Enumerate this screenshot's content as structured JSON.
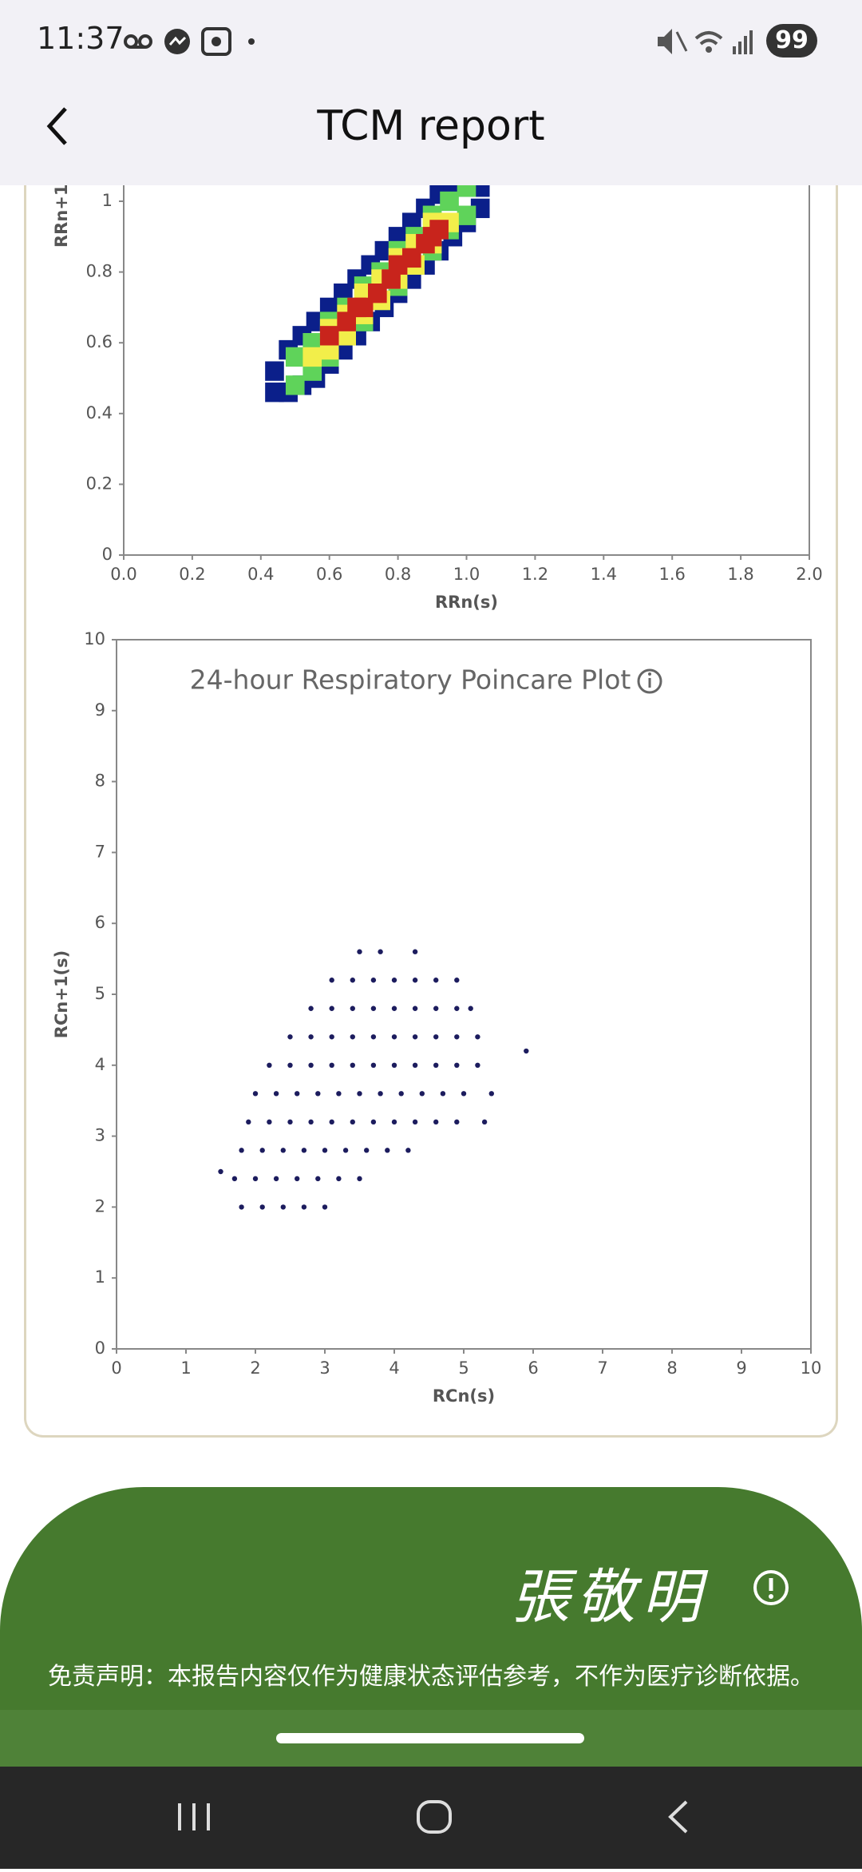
{
  "status_bar": {
    "time": "11:37",
    "battery": "99"
  },
  "header": {
    "title": "TCM report"
  },
  "chart_data": [
    {
      "type": "scatter",
      "marker": "square",
      "x_label": "RRn(s)",
      "y_label": "RRn+1",
      "xlim": [
        0,
        2
      ],
      "ylim": [
        0,
        2
      ],
      "xticks": [
        {
          "value": 0,
          "label": "0.0"
        },
        0.2,
        0.4,
        0.6,
        0.8,
        {
          "value": 1,
          "label": "1.0"
        },
        1.2,
        1.4,
        1.6,
        1.8,
        {
          "value": 2,
          "label": "2.0"
        }
      ],
      "yticks": [
        0,
        0.2,
        0.4,
        0.6,
        0.8,
        1
      ],
      "series": [
        {
          "color": "#0b1f8a",
          "x": [
            0.44,
            0.44,
            0.48,
            0.48,
            0.52,
            0.52,
            0.56,
            0.56,
            0.6,
            0.6,
            0.64,
            0.64,
            0.68,
            0.68,
            0.72,
            0.72,
            0.76,
            0.76,
            0.8,
            0.8,
            0.84,
            0.84,
            0.88,
            0.88,
            0.92,
            0.92,
            0.96,
            0.96,
            1.0,
            1.0,
            1.04,
            1.04
          ],
          "y": [
            0.46,
            0.52,
            0.46,
            0.58,
            0.48,
            0.62,
            0.5,
            0.66,
            0.54,
            0.7,
            0.58,
            0.74,
            0.62,
            0.78,
            0.66,
            0.82,
            0.7,
            0.86,
            0.74,
            0.9,
            0.78,
            0.94,
            0.82,
            0.98,
            0.86,
            1.02,
            0.9,
            1.04,
            0.94,
            1.04,
            0.98,
            1.04
          ]
        },
        {
          "color": "#5fd35a",
          "x": [
            0.5,
            0.5,
            0.55,
            0.55,
            0.6,
            0.6,
            0.65,
            0.65,
            0.7,
            0.7,
            0.75,
            0.75,
            0.8,
            0.8,
            0.85,
            0.85,
            0.9,
            0.9,
            0.95,
            0.95,
            1.0,
            1.0
          ],
          "y": [
            0.48,
            0.56,
            0.52,
            0.6,
            0.56,
            0.66,
            0.62,
            0.7,
            0.66,
            0.76,
            0.72,
            0.8,
            0.76,
            0.86,
            0.82,
            0.9,
            0.86,
            0.96,
            0.92,
            1.0,
            0.96,
            1.04
          ]
        },
        {
          "color": "#f2ee4a",
          "x": [
            0.55,
            0.6,
            0.6,
            0.65,
            0.65,
            0.7,
            0.7,
            0.75,
            0.75,
            0.8,
            0.8,
            0.85,
            0.85,
            0.9,
            0.9,
            0.95
          ],
          "y": [
            0.56,
            0.58,
            0.64,
            0.62,
            0.68,
            0.68,
            0.74,
            0.72,
            0.78,
            0.78,
            0.84,
            0.82,
            0.88,
            0.88,
            0.94,
            0.94
          ]
        },
        {
          "color": "#c8241c",
          "x": [
            0.6,
            0.65,
            0.68,
            0.7,
            0.74,
            0.78,
            0.8,
            0.84,
            0.88,
            0.9,
            0.92
          ],
          "y": [
            0.62,
            0.66,
            0.7,
            0.7,
            0.74,
            0.78,
            0.82,
            0.84,
            0.88,
            0.9,
            0.92
          ]
        }
      ]
    },
    {
      "type": "scatter",
      "marker": "dot",
      "title": "24-hour Respiratory Poincare Plot",
      "x_label": "RCn(s)",
      "y_label": "RCn+1(s)",
      "xlim": [
        0,
        10
      ],
      "ylim": [
        0,
        10
      ],
      "xticks": [
        0,
        1,
        2,
        3,
        4,
        5,
        6,
        7,
        8,
        9,
        10
      ],
      "yticks": [
        0,
        1,
        2,
        3,
        4,
        5,
        6,
        7,
        8,
        9,
        10
      ],
      "series": [
        {
          "color": "#1c1c5e",
          "x": [
            1.8,
            2.1,
            2.4,
            2.7,
            3.0,
            1.7,
            2.0,
            2.3,
            2.6,
            2.9,
            3.2,
            3.5,
            1.8,
            2.1,
            2.4,
            2.7,
            3.0,
            3.3,
            3.6,
            3.9,
            4.2,
            1.9,
            2.2,
            2.5,
            2.8,
            3.1,
            3.4,
            3.7,
            4.0,
            4.3,
            4.6,
            4.9,
            5.3,
            2.0,
            2.3,
            2.6,
            2.9,
            3.2,
            3.5,
            3.8,
            4.1,
            4.4,
            4.7,
            5.0,
            5.4,
            2.2,
            2.5,
            2.8,
            3.1,
            3.4,
            3.7,
            4.0,
            4.3,
            4.6,
            4.9,
            5.2,
            2.5,
            2.8,
            3.1,
            3.4,
            3.7,
            4.0,
            4.3,
            4.6,
            4.9,
            5.2,
            2.8,
            3.1,
            3.4,
            3.7,
            4.0,
            4.3,
            4.6,
            4.9,
            5.1,
            3.1,
            3.4,
            3.7,
            4.0,
            4.3,
            4.6,
            4.9,
            3.5,
            3.8,
            4.3,
            5.9,
            1.5
          ],
          "y": [
            2.0,
            2.0,
            2.0,
            2.0,
            2.0,
            2.4,
            2.4,
            2.4,
            2.4,
            2.4,
            2.4,
            2.4,
            2.8,
            2.8,
            2.8,
            2.8,
            2.8,
            2.8,
            2.8,
            2.8,
            2.8,
            3.2,
            3.2,
            3.2,
            3.2,
            3.2,
            3.2,
            3.2,
            3.2,
            3.2,
            3.2,
            3.2,
            3.2,
            3.6,
            3.6,
            3.6,
            3.6,
            3.6,
            3.6,
            3.6,
            3.6,
            3.6,
            3.6,
            3.6,
            3.6,
            4.0,
            4.0,
            4.0,
            4.0,
            4.0,
            4.0,
            4.0,
            4.0,
            4.0,
            4.0,
            4.0,
            4.4,
            4.4,
            4.4,
            4.4,
            4.4,
            4.4,
            4.4,
            4.4,
            4.4,
            4.4,
            4.8,
            4.8,
            4.8,
            4.8,
            4.8,
            4.8,
            4.8,
            4.8,
            4.8,
            5.2,
            5.2,
            5.2,
            5.2,
            5.2,
            5.2,
            5.2,
            5.6,
            5.6,
            5.6,
            4.2,
            2.5
          ]
        }
      ]
    }
  ],
  "footer": {
    "signature": "張敬明",
    "disclaimer": "免责声明：本报告内容仅作为健康状态评估参考，不作为医疗诊断依据。"
  }
}
